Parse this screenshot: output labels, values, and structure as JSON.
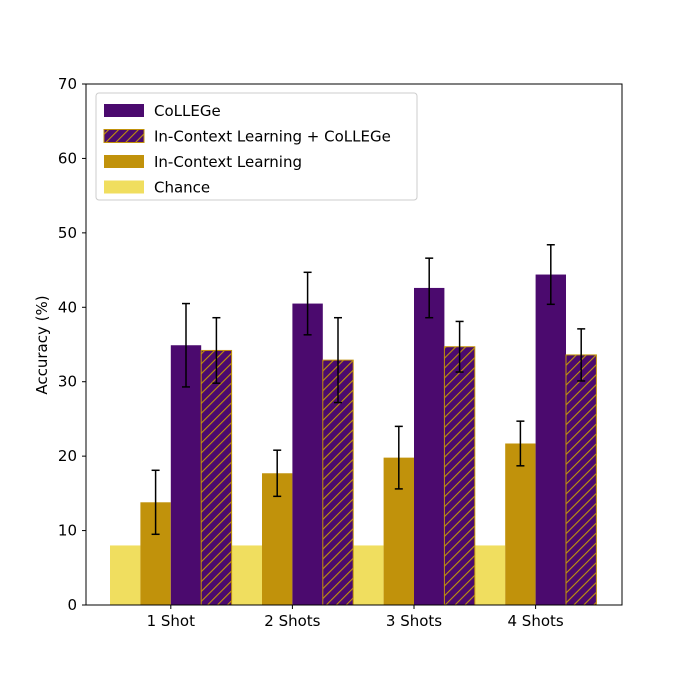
{
  "chart_data": {
    "type": "bar",
    "title": "",
    "xlabel": "",
    "ylabel": "Accuracy (%)",
    "ylim": [
      0,
      70
    ],
    "yticks": [
      0,
      10,
      20,
      30,
      40,
      50,
      60,
      70
    ],
    "grid": false,
    "legend_position": "top-left",
    "categories": [
      "1 Shot",
      "2 Shots",
      "3 Shots",
      "4 Shots"
    ],
    "series": [
      {
        "name": "Chance",
        "color": "#f0de5f",
        "hatch": false,
        "values": [
          8,
          8,
          8,
          8
        ],
        "errors": null
      },
      {
        "name": "In-Context Learning",
        "color": "#c1920b",
        "hatch": false,
        "values": [
          13.8,
          17.7,
          19.8,
          21.7
        ],
        "errors": [
          4.3,
          3.1,
          4.2,
          3.0
        ]
      },
      {
        "name": "CoLLEGe",
        "color": "#4b0a6e",
        "hatch": false,
        "values": [
          34.9,
          40.5,
          42.6,
          44.4
        ],
        "errors": [
          5.6,
          4.2,
          4.0,
          4.0
        ]
      },
      {
        "name": "In-Context Learning + CoLLEGe",
        "color": "#4b0a6e",
        "hatch": true,
        "hatch_color": "#c1920b",
        "values": [
          34.2,
          32.9,
          34.7,
          33.6
        ],
        "errors": [
          4.4,
          5.7,
          3.4,
          3.5
        ]
      }
    ],
    "legend_order": [
      "CoLLEGe",
      "In-Context Learning + CoLLEGe",
      "In-Context Learning",
      "Chance"
    ]
  }
}
